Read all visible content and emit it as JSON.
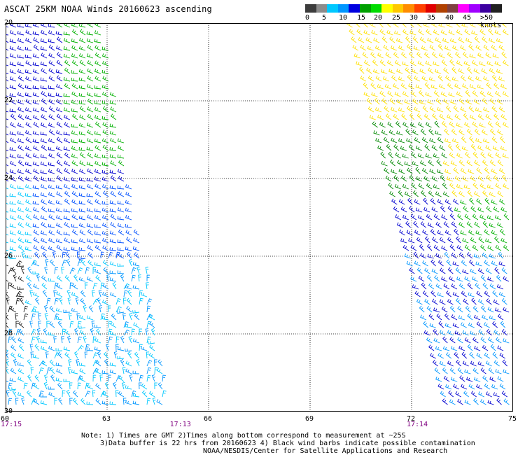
{
  "title": "ASCAT 25KM NOAA Winds 20160623 ascending",
  "colorbar": {
    "labels": [
      "0",
      "5",
      "10",
      "15",
      "20",
      "25",
      "30",
      "35",
      "40",
      "45",
      ">50 knots"
    ],
    "colors": [
      "#3c3c3c",
      "#8c8c8c",
      "#00c8ff",
      "#0096ff",
      "#0000e0",
      "#00a000",
      "#00dc00",
      "#ffff00",
      "#ffc800",
      "#ff8c00",
      "#ff4000",
      "#e00000",
      "#b04000",
      "#804040",
      "#ff00ff",
      "#a000ff",
      "#3c00a0",
      "#202020"
    ]
  },
  "map": {
    "lat_labels": [
      "20",
      "22",
      "24",
      "26",
      "28",
      "30"
    ],
    "lon_labels": [
      "60",
      "63",
      "66",
      "69",
      "72",
      "75"
    ],
    "lat_range": [
      20,
      30
    ],
    "lon_range": [
      60,
      75
    ],
    "grid": true
  },
  "pass_times": [
    {
      "label": "17:15",
      "lon": 60
    },
    {
      "label": "17:13",
      "lon": 65
    },
    {
      "label": "17:14",
      "lon": 72
    }
  ],
  "notes": {
    "line1": "Note: 1) Times are GMT 2)Times along bottom correspond to measurement at ~25S",
    "line2": "3)Data buffer is 22 hrs from 20160623 4) Black wind barbs indicate possible contamination",
    "line3": "NOAA/NESDIS/Center for Satellite Applications and Research"
  }
}
